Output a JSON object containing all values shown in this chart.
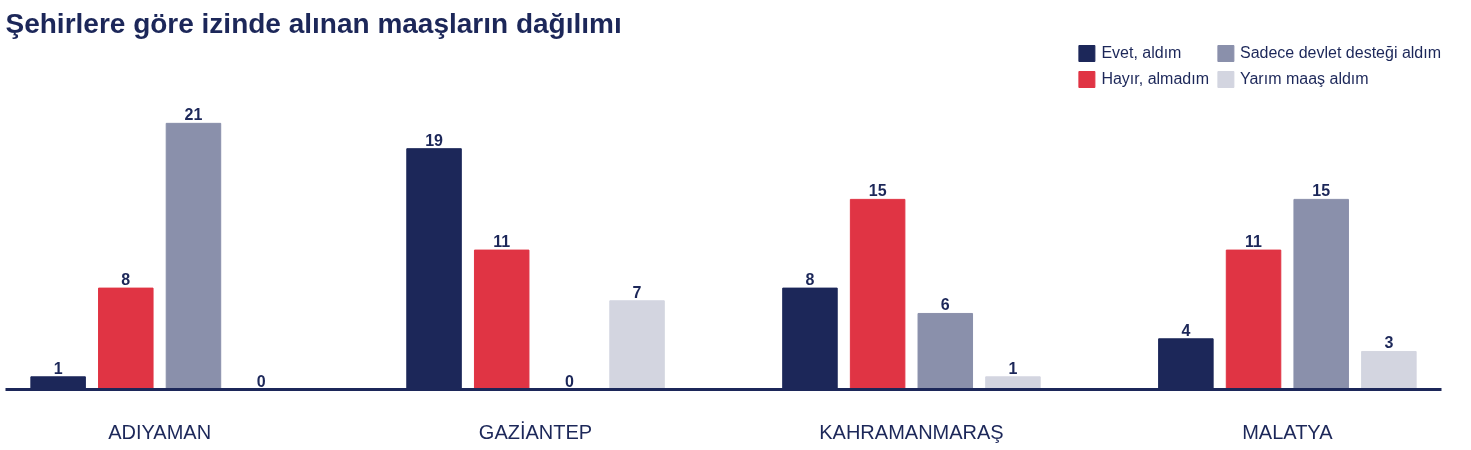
{
  "chart_data": {
    "type": "bar",
    "title": "Şehirlere göre izinde alınan maaşların dağılımı",
    "categories": [
      "ADIYAMAN",
      "GAZİANTEP",
      "KAHRAMANMARAŞ",
      "MALATYA"
    ],
    "series": [
      {
        "name": "Evet, aldım",
        "color": "#1c2759",
        "values": [
          1,
          19,
          8,
          4
        ]
      },
      {
        "name": "Hayır, almadım",
        "color": "#e03444",
        "values": [
          8,
          11,
          15,
          11
        ]
      },
      {
        "name": "Sadece devlet desteği aldım",
        "color": "#8a90ab",
        "values": [
          21,
          0,
          6,
          15
        ]
      },
      {
        "name": "Yarım maaş aldım",
        "color": "#d3d5e0",
        "values": [
          0,
          7,
          1,
          3
        ]
      }
    ],
    "data_labels": true,
    "legend": "top right",
    "grid": false
  }
}
